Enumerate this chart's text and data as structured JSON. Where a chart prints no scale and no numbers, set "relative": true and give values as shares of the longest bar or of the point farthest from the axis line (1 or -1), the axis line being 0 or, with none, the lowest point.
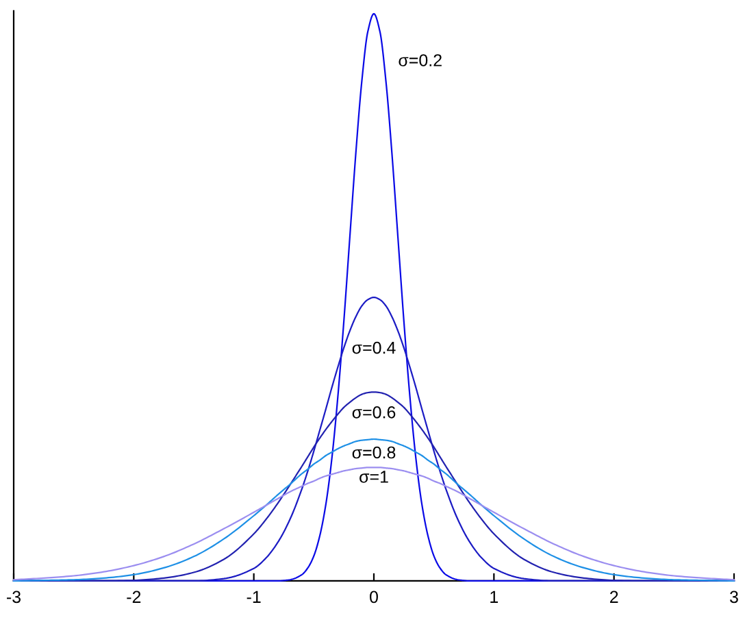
{
  "chart_data": {
    "type": "line",
    "relative": true,
    "x": [
      -3,
      -2.75,
      -2.5,
      -2.25,
      -2,
      -1.75,
      -1.5,
      -1.25,
      -1,
      -0.9,
      -0.8,
      -0.7,
      -0.6,
      -0.55,
      -0.5,
      -0.45,
      -0.4,
      -0.35,
      -0.3,
      -0.25,
      -0.2,
      -0.15,
      -0.1,
      -0.05,
      0,
      0.05,
      0.1,
      0.15,
      0.2,
      0.25,
      0.3,
      0.35,
      0.4,
      0.45,
      0.5,
      0.55,
      0.6,
      0.7,
      0.8,
      0.9,
      1,
      1.25,
      1.5,
      1.75,
      2,
      2.25,
      2.5,
      2.75,
      3
    ],
    "xlim": [
      -3,
      3
    ],
    "xticks": [
      -3,
      -2,
      -1,
      0,
      1,
      2,
      3
    ],
    "series": [
      {
        "name": "σ=0.2",
        "color": "#0a0ae6",
        "values": [
          0,
          0,
          0,
          0,
          0,
          0,
          0,
          0,
          0,
          0,
          0,
          0.002,
          0.011,
          0.023,
          0.044,
          0.08,
          0.135,
          0.216,
          0.325,
          0.458,
          0.607,
          0.755,
          0.882,
          0.969,
          1,
          0.969,
          0.882,
          0.755,
          0.607,
          0.458,
          0.325,
          0.216,
          0.135,
          0.08,
          0.044,
          0.023,
          0.011,
          0.002,
          0,
          0,
          0,
          0,
          0,
          0,
          0,
          0,
          0,
          0,
          0
        ]
      },
      {
        "name": "σ=0.4",
        "color": "#1c1cc4",
        "values": [
          0,
          0,
          0,
          0,
          0,
          0,
          0,
          0.004,
          0.022,
          0.04,
          0.068,
          0.108,
          0.162,
          0.194,
          0.229,
          0.266,
          0.303,
          0.341,
          0.377,
          0.411,
          0.441,
          0.466,
          0.485,
          0.496,
          0.5,
          0.496,
          0.485,
          0.466,
          0.441,
          0.411,
          0.377,
          0.341,
          0.303,
          0.266,
          0.229,
          0.194,
          0.162,
          0.108,
          0.068,
          0.04,
          0.022,
          0.004,
          0,
          0,
          0,
          0,
          0,
          0,
          0
        ]
      },
      {
        "name": "σ=0.6",
        "color": "#2222b0",
        "values": [
          0,
          0,
          0,
          0,
          0.001,
          0.005,
          0.015,
          0.038,
          0.083,
          0.108,
          0.137,
          0.169,
          0.202,
          0.219,
          0.236,
          0.252,
          0.267,
          0.281,
          0.294,
          0.306,
          0.315,
          0.323,
          0.329,
          0.332,
          0.333,
          0.332,
          0.329,
          0.323,
          0.315,
          0.306,
          0.294,
          0.281,
          0.267,
          0.252,
          0.236,
          0.219,
          0.202,
          0.169,
          0.137,
          0.108,
          0.083,
          0.038,
          0.015,
          0.005,
          0.001,
          0,
          0,
          0,
          0
        ]
      },
      {
        "name": "σ=0.8",
        "color": "#1e90e6",
        "values": [
          0,
          0.001,
          0.002,
          0.005,
          0.011,
          0.023,
          0.043,
          0.074,
          0.115,
          0.133,
          0.152,
          0.17,
          0.189,
          0.197,
          0.206,
          0.213,
          0.221,
          0.227,
          0.233,
          0.238,
          0.242,
          0.246,
          0.248,
          0.249,
          0.25,
          0.249,
          0.248,
          0.246,
          0.242,
          0.238,
          0.233,
          0.227,
          0.221,
          0.213,
          0.206,
          0.197,
          0.189,
          0.17,
          0.152,
          0.133,
          0.115,
          0.074,
          0.043,
          0.023,
          0.011,
          0.005,
          0.002,
          0.001,
          0
        ]
      },
      {
        "name": "σ=1",
        "color": "#9b8ef0",
        "values": [
          0.002,
          0.005,
          0.009,
          0.016,
          0.027,
          0.043,
          0.065,
          0.092,
          0.121,
          0.133,
          0.145,
          0.157,
          0.167,
          0.172,
          0.176,
          0.181,
          0.185,
          0.188,
          0.191,
          0.194,
          0.196,
          0.198,
          0.199,
          0.2,
          0.2,
          0.2,
          0.199,
          0.198,
          0.196,
          0.194,
          0.191,
          0.188,
          0.185,
          0.181,
          0.176,
          0.172,
          0.167,
          0.157,
          0.145,
          0.133,
          0.121,
          0.092,
          0.065,
          0.043,
          0.027,
          0.016,
          0.009,
          0.005,
          0.002
        ]
      }
    ]
  }
}
